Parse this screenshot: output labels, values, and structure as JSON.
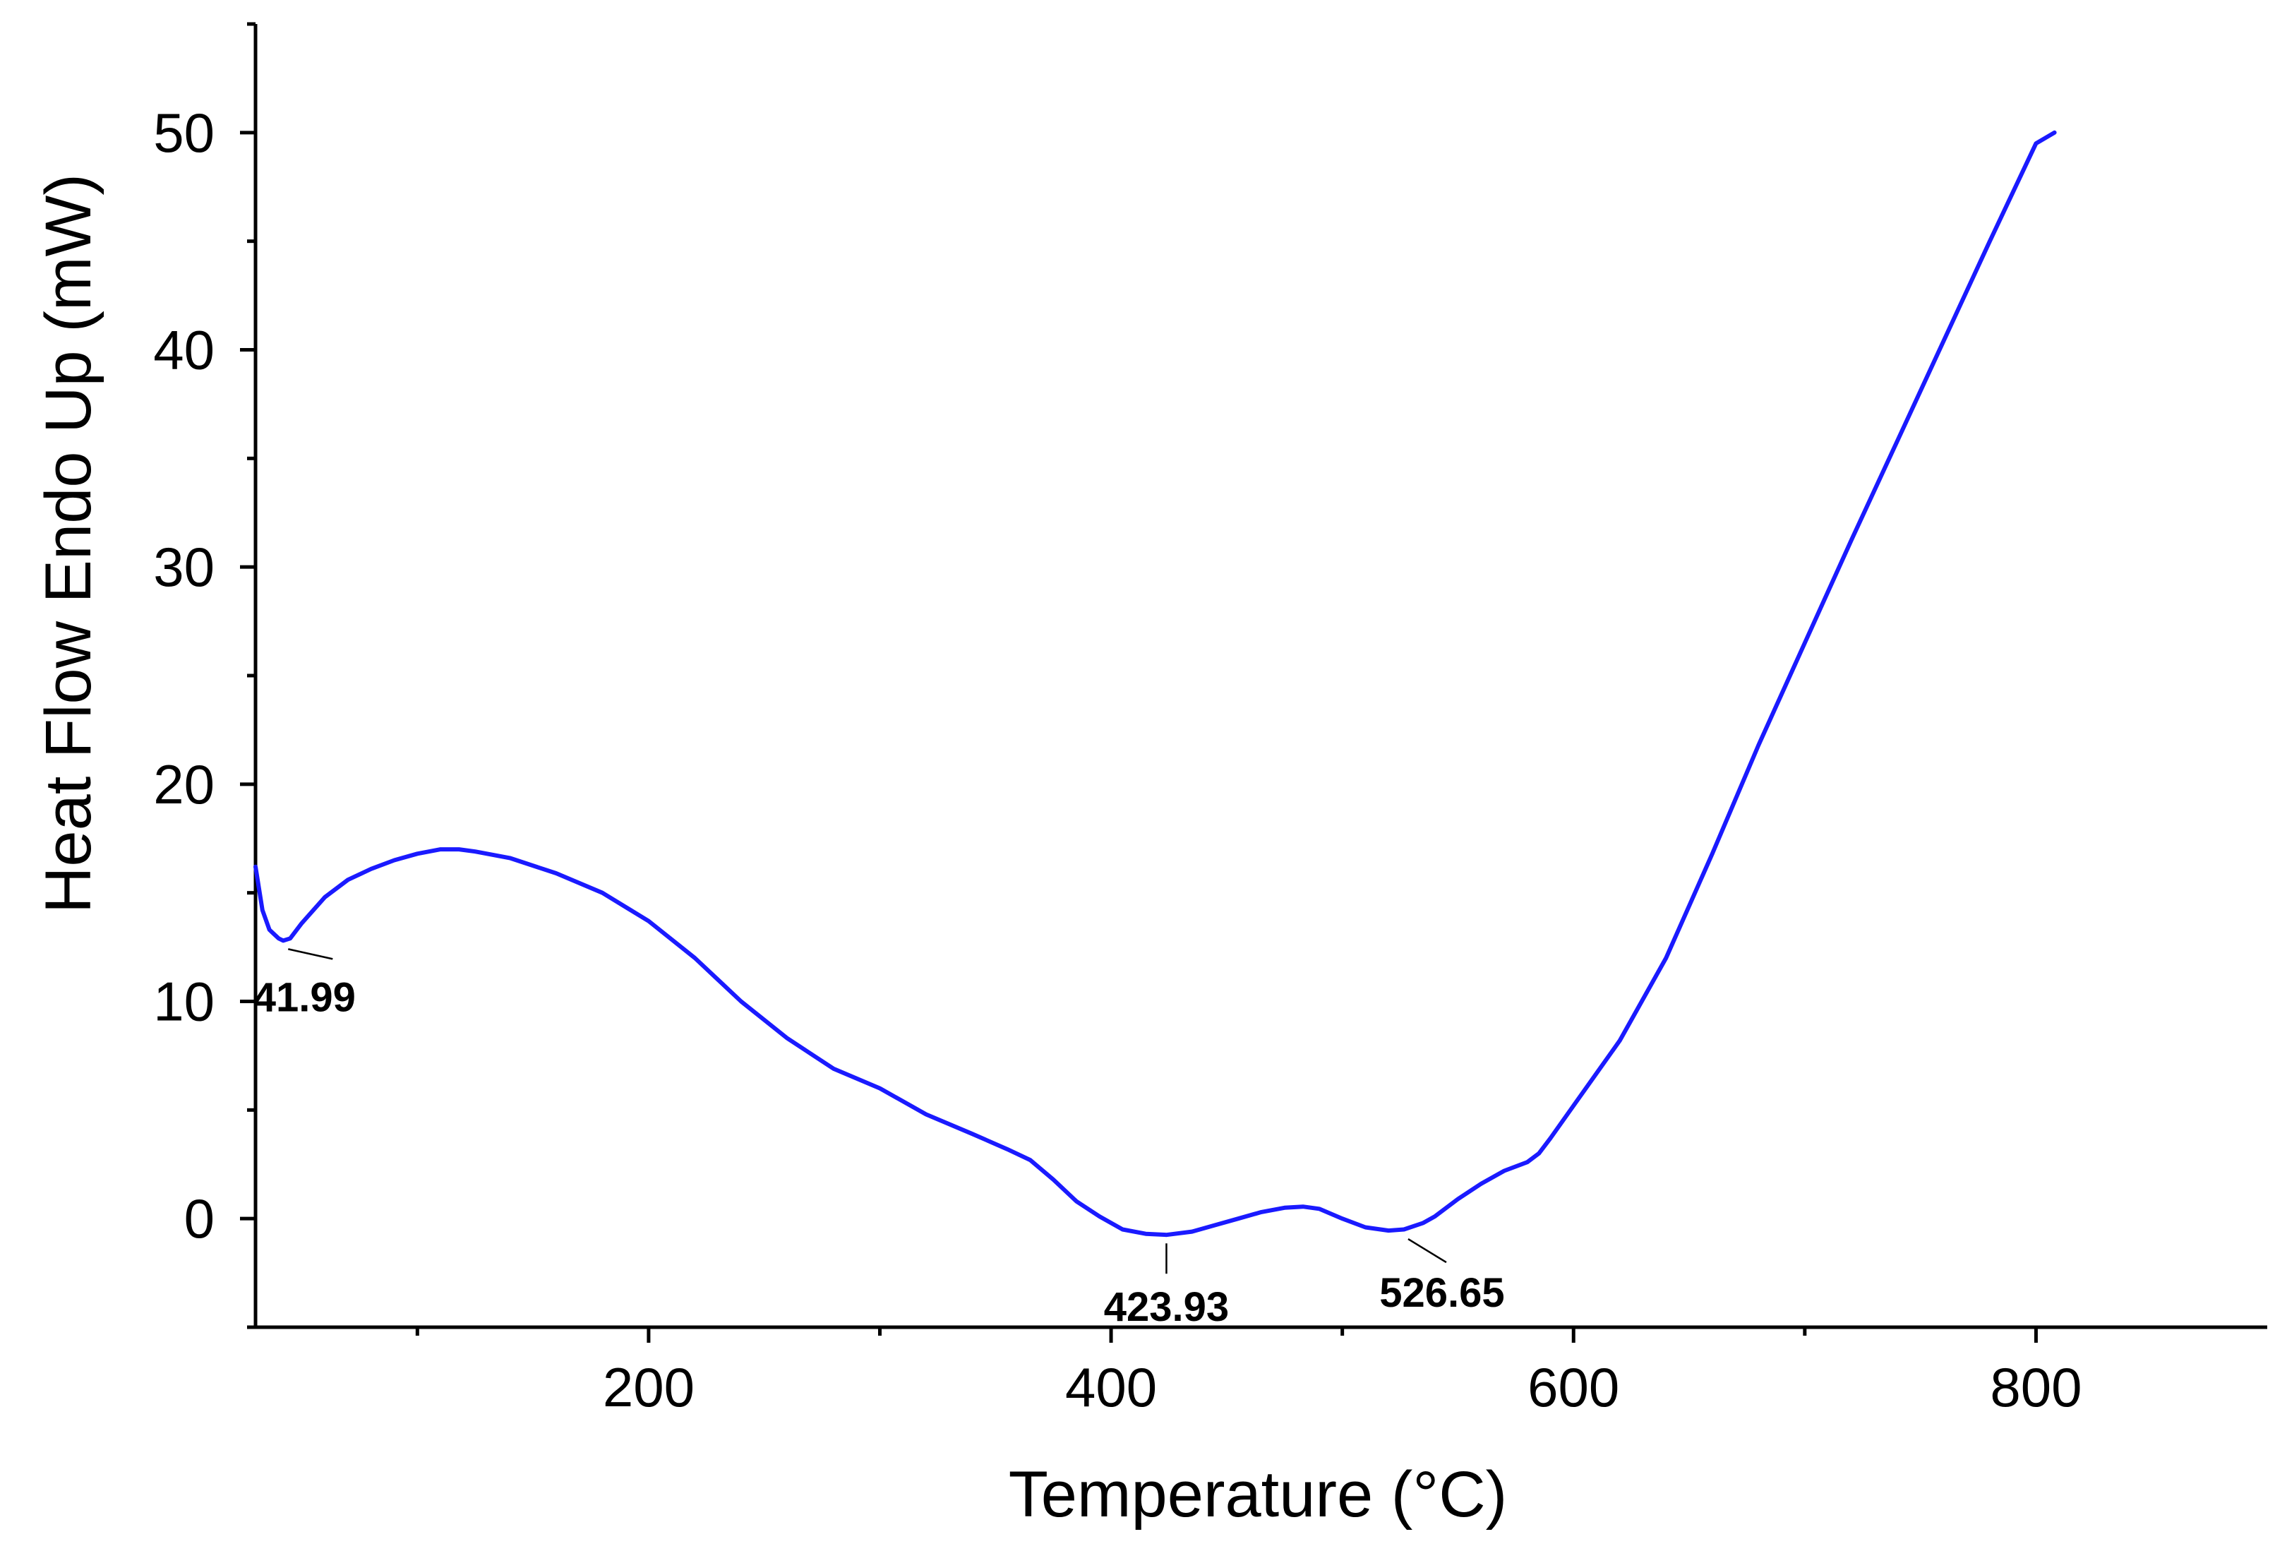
{
  "chart_data": {
    "type": "line",
    "title": "",
    "xlabel": "Temperature (°C)",
    "ylabel": "Heat Flow Endo Up (mW)",
    "xlim": [
      30,
      900
    ],
    "ylim": [
      -5,
      55
    ],
    "x_ticks": [
      200,
      400,
      600,
      800
    ],
    "x_minor_ticks": [
      100,
      300,
      500,
      700
    ],
    "y_ticks": [
      0,
      10,
      20,
      30,
      40,
      50
    ],
    "y_minor_ticks": [
      -5,
      5,
      15,
      25,
      35,
      45,
      55
    ],
    "grid": false,
    "legend": "none",
    "colors": {
      "series": "#1a1aff",
      "axis": "#000000"
    },
    "series": [
      {
        "x": [
          30,
          33,
          36,
          40,
          42,
          45,
          50,
          55,
          60,
          70,
          80,
          90,
          100,
          110,
          118,
          125,
          140,
          160,
          180,
          200,
          220,
          240,
          260,
          280,
          300,
          320,
          340,
          355,
          365,
          375,
          385,
          395,
          405,
          415,
          423.93,
          435,
          445,
          455,
          465,
          475,
          483,
          490,
          500,
          510,
          520,
          526.65,
          535,
          540,
          550,
          560,
          570,
          580,
          585,
          590,
          600,
          620,
          640,
          660,
          680,
          700,
          720,
          740,
          760,
          780,
          800,
          808
        ],
        "y": [
          16.2,
          14.2,
          13.3,
          12.9,
          12.8,
          12.9,
          13.6,
          14.2,
          14.8,
          15.6,
          16.1,
          16.5,
          16.8,
          17.0,
          17.0,
          16.9,
          16.6,
          15.9,
          15.0,
          13.7,
          12.0,
          10.0,
          8.3,
          6.9,
          6.0,
          4.8,
          3.9,
          3.2,
          2.7,
          1.8,
          0.8,
          0.1,
          -0.5,
          -0.7,
          -0.75,
          -0.6,
          -0.3,
          0.0,
          0.3,
          0.5,
          0.55,
          0.45,
          0.0,
          -0.4,
          -0.55,
          -0.5,
          -0.2,
          0.1,
          0.9,
          1.6,
          2.2,
          2.6,
          3.0,
          3.7,
          5.2,
          8.2,
          12.0,
          16.8,
          21.8,
          26.5,
          31.2,
          35.8,
          40.4,
          45.0,
          49.5,
          50.0
        ]
      }
    ],
    "annotations": [
      {
        "label": "41.99",
        "x": 41.99,
        "y": 12.8
      },
      {
        "label": "423.93",
        "x": 423.93,
        "y": -0.75
      },
      {
        "label": "526.65",
        "x": 526.65,
        "y": -0.55
      }
    ]
  }
}
